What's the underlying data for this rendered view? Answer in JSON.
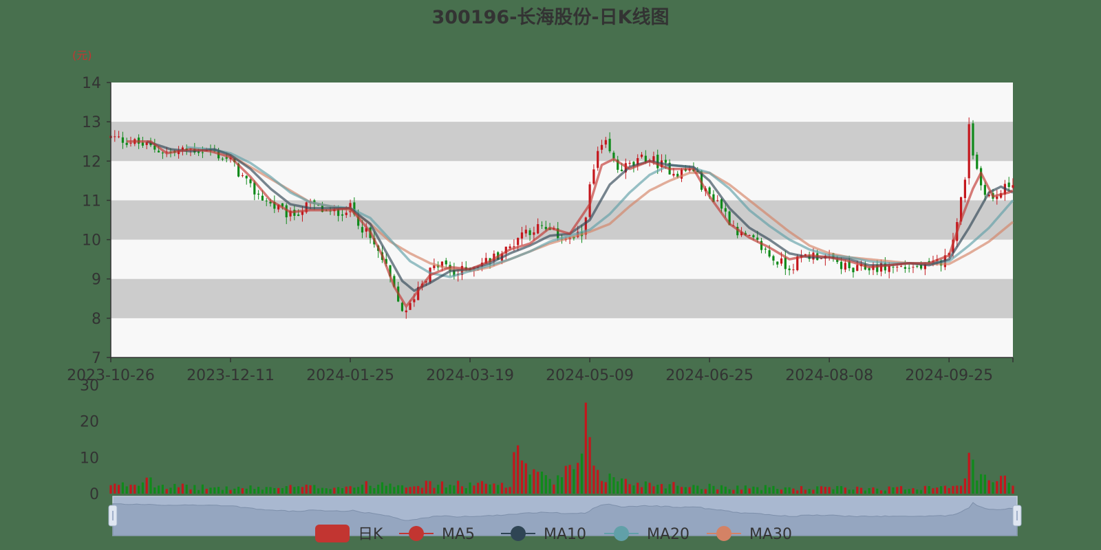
{
  "chart_data": {
    "type": "candlestick",
    "title": "300196-长海股份-日K线图",
    "y_unit": "(元)",
    "ylim": [
      7,
      14
    ],
    "y_ticks": [
      "7",
      "8",
      "9",
      "10",
      "11",
      "12",
      "13",
      "14"
    ],
    "x_ticks": [
      "2023-10-26",
      "2023-12-11",
      "2024-01-25",
      "2024-03-19",
      "2024-05-09",
      "2024-06-25",
      "2024-08-08",
      "2024-09-25"
    ],
    "x_tick_trading_days": [
      0,
      30,
      60,
      90,
      120,
      150,
      180,
      210
    ],
    "trading_days": 227,
    "ma_key_points": {
      "MA5": [
        [
          4,
          12.5
        ],
        [
          10,
          12.5
        ],
        [
          14,
          12.2
        ],
        [
          20,
          12.3
        ],
        [
          25,
          12.25
        ],
        [
          30,
          12.1
        ],
        [
          35,
          11.6
        ],
        [
          40,
          11.0
        ],
        [
          45,
          10.7
        ],
        [
          50,
          10.75
        ],
        [
          55,
          10.75
        ],
        [
          60,
          10.8
        ],
        [
          65,
          10.2
        ],
        [
          68,
          9.6
        ],
        [
          71,
          8.8
        ],
        [
          74,
          8.3
        ],
        [
          77,
          8.7
        ],
        [
          80,
          9.1
        ],
        [
          85,
          9.3
        ],
        [
          90,
          9.25
        ],
        [
          95,
          9.45
        ],
        [
          100,
          9.75
        ],
        [
          105,
          9.9
        ],
        [
          110,
          10.3
        ],
        [
          115,
          10.15
        ],
        [
          120,
          10.9
        ],
        [
          123,
          11.9
        ],
        [
          126,
          12.05
        ],
        [
          130,
          11.8
        ],
        [
          135,
          12.0
        ],
        [
          140,
          11.8
        ],
        [
          146,
          11.8
        ],
        [
          150,
          11.1
        ],
        [
          155,
          10.4
        ],
        [
          160,
          10.05
        ],
        [
          165,
          9.8
        ],
        [
          170,
          9.5
        ],
        [
          175,
          9.6
        ],
        [
          180,
          9.55
        ],
        [
          185,
          9.45
        ],
        [
          190,
          9.3
        ],
        [
          195,
          9.35
        ],
        [
          200,
          9.4
        ],
        [
          205,
          9.4
        ],
        [
          210,
          9.6
        ],
        [
          213,
          10.5
        ],
        [
          216,
          11.3
        ],
        [
          218,
          11.7
        ],
        [
          221,
          11.1
        ],
        [
          225,
          11.2
        ],
        [
          226,
          11.25
        ]
      ],
      "MA10": [
        [
          9,
          12.5
        ],
        [
          15,
          12.3
        ],
        [
          20,
          12.25
        ],
        [
          26,
          12.3
        ],
        [
          30,
          12.15
        ],
        [
          35,
          11.8
        ],
        [
          40,
          11.3
        ],
        [
          45,
          10.9
        ],
        [
          50,
          10.8
        ],
        [
          55,
          10.8
        ],
        [
          60,
          10.8
        ],
        [
          65,
          10.4
        ],
        [
          70,
          9.5
        ],
        [
          73,
          8.95
        ],
        [
          76,
          8.7
        ],
        [
          80,
          8.9
        ],
        [
          85,
          9.2
        ],
        [
          90,
          9.25
        ],
        [
          95,
          9.4
        ],
        [
          100,
          9.65
        ],
        [
          105,
          9.85
        ],
        [
          110,
          10.1
        ],
        [
          115,
          10.15
        ],
        [
          120,
          10.5
        ],
        [
          125,
          11.4
        ],
        [
          130,
          11.85
        ],
        [
          135,
          12.0
        ],
        [
          140,
          11.9
        ],
        [
          146,
          11.85
        ],
        [
          150,
          11.5
        ],
        [
          155,
          10.8
        ],
        [
          160,
          10.3
        ],
        [
          165,
          10.0
        ],
        [
          170,
          9.65
        ],
        [
          175,
          9.55
        ],
        [
          180,
          9.55
        ],
        [
          185,
          9.5
        ],
        [
          190,
          9.35
        ],
        [
          195,
          9.35
        ],
        [
          200,
          9.4
        ],
        [
          205,
          9.35
        ],
        [
          210,
          9.5
        ],
        [
          215,
          10.3
        ],
        [
          220,
          11.2
        ],
        [
          223,
          11.35
        ],
        [
          226,
          11.2
        ]
      ],
      "MA20": [
        [
          19,
          12.35
        ],
        [
          25,
          12.3
        ],
        [
          30,
          12.2
        ],
        [
          35,
          11.95
        ],
        [
          40,
          11.6
        ],
        [
          45,
          11.2
        ],
        [
          50,
          10.95
        ],
        [
          55,
          10.85
        ],
        [
          60,
          10.8
        ],
        [
          65,
          10.55
        ],
        [
          70,
          10.0
        ],
        [
          75,
          9.45
        ],
        [
          80,
          9.15
        ],
        [
          85,
          9.05
        ],
        [
          90,
          9.2
        ],
        [
          95,
          9.35
        ],
        [
          100,
          9.5
        ],
        [
          105,
          9.7
        ],
        [
          110,
          9.95
        ],
        [
          115,
          10.1
        ],
        [
          120,
          10.25
        ],
        [
          125,
          10.65
        ],
        [
          130,
          11.2
        ],
        [
          135,
          11.65
        ],
        [
          140,
          11.9
        ],
        [
          145,
          11.85
        ],
        [
          150,
          11.7
        ],
        [
          155,
          11.3
        ],
        [
          160,
          10.75
        ],
        [
          165,
          10.35
        ],
        [
          170,
          10.0
        ],
        [
          175,
          9.75
        ],
        [
          180,
          9.6
        ],
        [
          185,
          9.55
        ],
        [
          190,
          9.45
        ],
        [
          195,
          9.4
        ],
        [
          200,
          9.4
        ],
        [
          205,
          9.4
        ],
        [
          210,
          9.45
        ],
        [
          215,
          9.85
        ],
        [
          220,
          10.3
        ],
        [
          226,
          11.0
        ]
      ],
      "MA30": [
        [
          29,
          12.2
        ],
        [
          35,
          11.85
        ],
        [
          40,
          11.55
        ],
        [
          45,
          11.25
        ],
        [
          50,
          10.95
        ],
        [
          55,
          10.85
        ],
        [
          60,
          10.75
        ],
        [
          65,
          10.4
        ],
        [
          70,
          9.95
        ],
        [
          75,
          9.65
        ],
        [
          80,
          9.4
        ],
        [
          85,
          9.25
        ],
        [
          90,
          9.2
        ],
        [
          95,
          9.3
        ],
        [
          100,
          9.5
        ],
        [
          105,
          9.7
        ],
        [
          110,
          9.9
        ],
        [
          115,
          10.05
        ],
        [
          120,
          10.2
        ],
        [
          125,
          10.4
        ],
        [
          130,
          10.85
        ],
        [
          135,
          11.25
        ],
        [
          140,
          11.5
        ],
        [
          145,
          11.7
        ],
        [
          150,
          11.7
        ],
        [
          155,
          11.4
        ],
        [
          160,
          11.0
        ],
        [
          165,
          10.6
        ],
        [
          170,
          10.2
        ],
        [
          175,
          9.85
        ],
        [
          180,
          9.65
        ],
        [
          185,
          9.55
        ],
        [
          190,
          9.5
        ],
        [
          195,
          9.45
        ],
        [
          200,
          9.4
        ],
        [
          205,
          9.38
        ],
        [
          210,
          9.38
        ],
        [
          215,
          9.65
        ],
        [
          220,
          9.95
        ],
        [
          226,
          10.45
        ]
      ]
    },
    "price_anchors": [
      [
        0,
        12.6
      ],
      [
        5,
        12.5
      ],
      [
        10,
        12.35
      ],
      [
        15,
        12.2
      ],
      [
        20,
        12.3
      ],
      [
        25,
        12.25
      ],
      [
        30,
        12.0
      ],
      [
        35,
        11.3
      ],
      [
        40,
        10.9
      ],
      [
        45,
        10.6
      ],
      [
        50,
        10.9
      ],
      [
        55,
        10.65
      ],
      [
        60,
        10.8
      ],
      [
        65,
        10.0
      ],
      [
        68,
        9.5
      ],
      [
        70,
        9.0
      ],
      [
        72,
        8.4
      ],
      [
        74,
        8.1
      ],
      [
        77,
        8.8
      ],
      [
        80,
        9.2
      ],
      [
        83,
        9.4
      ],
      [
        86,
        9.1
      ],
      [
        90,
        9.3
      ],
      [
        95,
        9.5
      ],
      [
        100,
        9.8
      ],
      [
        103,
        10.2
      ],
      [
        107,
        10.3
      ],
      [
        110,
        10.2
      ],
      [
        115,
        10.0
      ],
      [
        118,
        10.1
      ],
      [
        120,
        11.3
      ],
      [
        122,
        12.2
      ],
      [
        124,
        12.4
      ],
      [
        127,
        11.8
      ],
      [
        131,
        11.9
      ],
      [
        134,
        12.1
      ],
      [
        138,
        11.9
      ],
      [
        142,
        11.7
      ],
      [
        146,
        11.8
      ],
      [
        149,
        11.2
      ],
      [
        152,
        11.0
      ],
      [
        155,
        10.5
      ],
      [
        158,
        10.1
      ],
      [
        162,
        9.9
      ],
      [
        166,
        9.5
      ],
      [
        170,
        9.3
      ],
      [
        174,
        9.6
      ],
      [
        178,
        9.6
      ],
      [
        182,
        9.4
      ],
      [
        186,
        9.2
      ],
      [
        190,
        9.3
      ],
      [
        195,
        9.3
      ],
      [
        200,
        9.3
      ],
      [
        205,
        9.3
      ],
      [
        209,
        9.5
      ],
      [
        212,
        10.4
      ],
      [
        214,
        11.6
      ],
      [
        215,
        13.0
      ],
      [
        216,
        12.2
      ],
      [
        218,
        11.4
      ],
      [
        221,
        11.0
      ],
      [
        224,
        11.3
      ],
      [
        226,
        11.5
      ]
    ],
    "price_noise": 0.28,
    "volume_anchors": [
      [
        0,
        2
      ],
      [
        8,
        3
      ],
      [
        9,
        7
      ],
      [
        11,
        3
      ],
      [
        15,
        2
      ],
      [
        30,
        1.5
      ],
      [
        60,
        2
      ],
      [
        70,
        3
      ],
      [
        80,
        2.5
      ],
      [
        95,
        2.5
      ],
      [
        100,
        3
      ],
      [
        102,
        14
      ],
      [
        104,
        8
      ],
      [
        106,
        6
      ],
      [
        110,
        3
      ],
      [
        118,
        8
      ],
      [
        119,
        20
      ],
      [
        120,
        11
      ],
      [
        123,
        5
      ],
      [
        130,
        3
      ],
      [
        150,
        2
      ],
      [
        170,
        1.5
      ],
      [
        200,
        1.5
      ],
      [
        210,
        2.5
      ],
      [
        214,
        3
      ],
      [
        215,
        12
      ],
      [
        216,
        7
      ],
      [
        218,
        4
      ],
      [
        226,
        3.5
      ]
    ],
    "volume_ylim": [
      0,
      30
    ],
    "volume_y_ticks": [
      "0",
      "10",
      "20",
      "30"
    ],
    "grid": "alternating horizontal bands",
    "legend": {
      "position": "bottom-center",
      "items": [
        {
          "name": "日K",
          "color": "#c23531",
          "symbol": "roundRect"
        },
        {
          "name": "MA5",
          "color": "#c23531",
          "symbol": "circle"
        },
        {
          "name": "MA10",
          "color": "#2f4554",
          "symbol": "circle"
        },
        {
          "name": "MA20",
          "color": "#61a0a8",
          "symbol": "circle"
        },
        {
          "name": "MA30",
          "color": "#d48265",
          "symbol": "circle"
        }
      ]
    },
    "colors": {
      "up": "#c4161c",
      "down": "#0f8a1a",
      "ma5": "#c23531",
      "ma10": "#2f4554",
      "ma20": "#61a0a8",
      "ma30": "#d48265",
      "band": "#cccccc",
      "plot_bg": "#f8f8f8",
      "background": "#48704e",
      "zoom_fill": "#a9b8d0"
    }
  }
}
